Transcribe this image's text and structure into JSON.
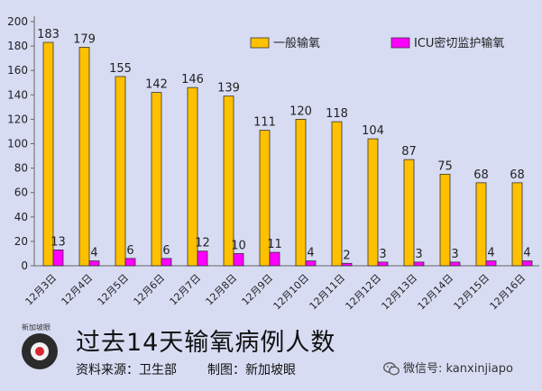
{
  "chart_data": {
    "type": "bar",
    "categories": [
      "12月3日",
      "12月4日",
      "12月5日",
      "12月6日",
      "12月7日",
      "12月8日",
      "12月9日",
      "12月10日",
      "12月11日",
      "12月12日",
      "12月13日",
      "12月14日",
      "12月15日",
      "12月16日"
    ],
    "series": [
      {
        "name": "一般输氧",
        "values": [
          183,
          179,
          155,
          142,
          146,
          139,
          111,
          120,
          118,
          104,
          87,
          75,
          68,
          68
        ],
        "color": "#ffc000"
      },
      {
        "name": "ICU密切监护输氧",
        "values": [
          13,
          4,
          6,
          6,
          12,
          10,
          11,
          4,
          2,
          3,
          3,
          3,
          4,
          4
        ],
        "color": "#ff00ff"
      }
    ],
    "yticks": [
      0,
      20,
      40,
      60,
      80,
      100,
      120,
      140,
      160,
      180,
      200
    ],
    "ylim": [
      0,
      200
    ],
    "grid": false,
    "legend": "top-right",
    "title": "",
    "xlabel": "",
    "ylabel": ""
  },
  "footer": {
    "logo_text": "新加坡眼",
    "title": "过去14天输氧病例人数",
    "source_label": "资料来源：",
    "source_value": "卫生部",
    "made_label": "制图：",
    "made_value": "新加坡眼",
    "wechat": "微信号: kanxinjiapo"
  }
}
